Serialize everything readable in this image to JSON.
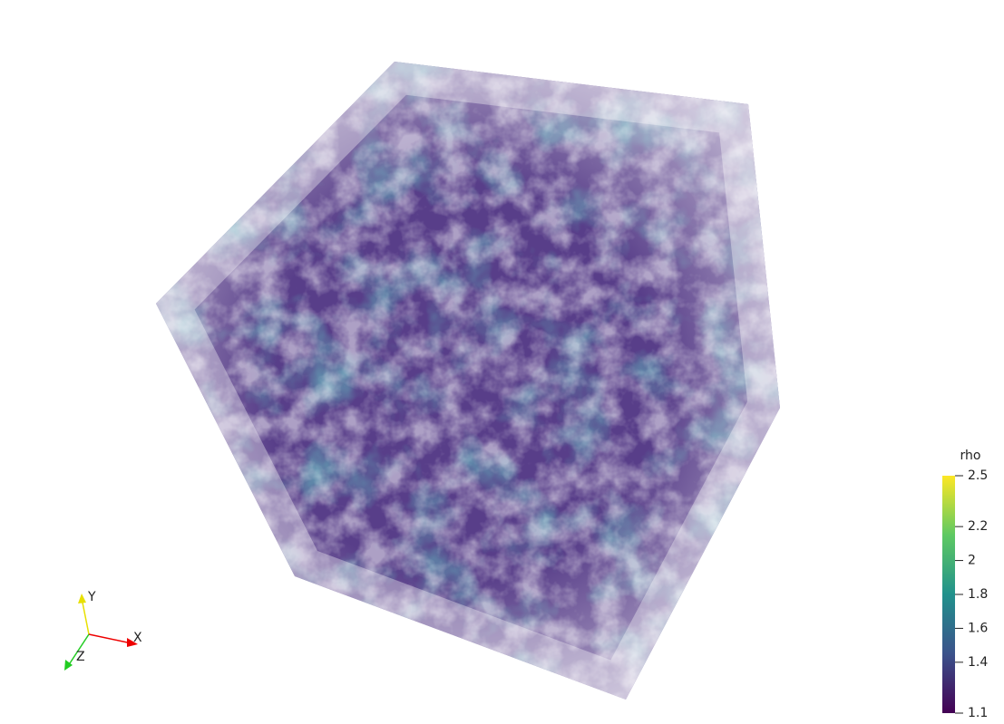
{
  "colorbar": {
    "title": "rho",
    "range": [
      1.1,
      2.5
    ],
    "ticks": [
      1.1,
      1.4,
      1.6,
      1.8,
      2,
      2.2,
      2.5
    ]
  },
  "axes_widget": {
    "x": "X",
    "y": "Y",
    "z": "Z"
  }
}
